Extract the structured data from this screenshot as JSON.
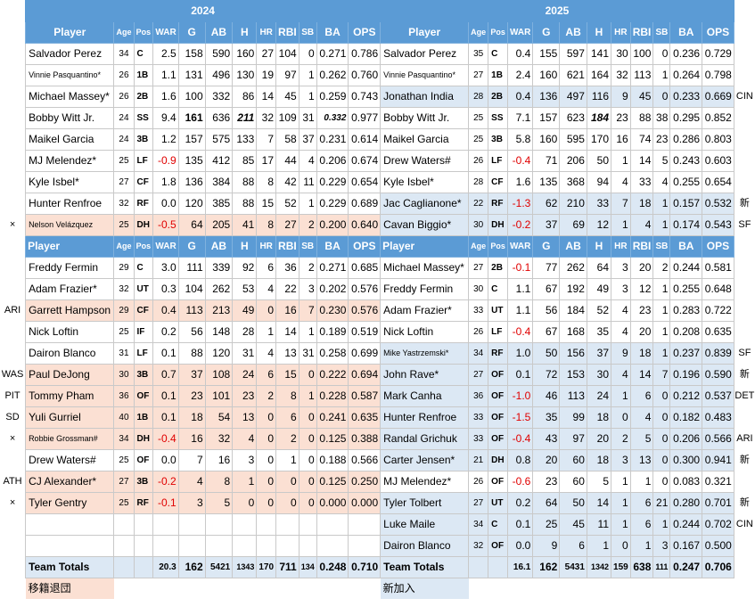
{
  "headers": {
    "year1": "2024",
    "year2": "2025",
    "player": "Player",
    "age": "Age",
    "pos": "Pos",
    "war": "WAR",
    "g": "G",
    "ab": "AB",
    "h": "H",
    "hr": "HR",
    "rbi": "RBI",
    "sb": "SB",
    "ba": "BA",
    "ops": "OPS"
  },
  "rows": [
    {
      "ln": "",
      "l": [
        "Salvador Perez",
        "34",
        "C",
        "2.5",
        "158",
        "590",
        "160",
        "27",
        "104",
        "0",
        "0.271",
        "0.786"
      ],
      "r": [
        "Salvador Perez",
        "35",
        "C",
        "0.4",
        "155",
        "597",
        "141",
        "30",
        "100",
        "0",
        "0.236",
        "0.729"
      ],
      "rn": ""
    },
    {
      "ln": "",
      "l": [
        "Vinnie Pasquantino*",
        "26",
        "1B",
        "1.1",
        "131",
        "496",
        "130",
        "19",
        "97",
        "1",
        "0.262",
        "0.760"
      ],
      "r": [
        "Vinnie Pasquantino*",
        "27",
        "1B",
        "2.4",
        "160",
        "621",
        "164",
        "32",
        "113",
        "1",
        "0.264",
        "0.798"
      ],
      "rn": ""
    },
    {
      "ln": "",
      "l": [
        "Michael Massey*",
        "26",
        "2B",
        "1.6",
        "100",
        "332",
        "86",
        "14",
        "45",
        "1",
        "0.259",
        "0.743"
      ],
      "r": [
        "Jonathan India",
        "28",
        "2B",
        "0.4",
        "136",
        "497",
        "116",
        "9",
        "45",
        "0",
        "0.233",
        "0.669"
      ],
      "rn": "CIN"
    },
    {
      "ln": "",
      "l": [
        "Bobby Witt Jr.",
        "24",
        "SS",
        "9.4",
        "161",
        "636",
        "211",
        "32",
        "109",
        "31",
        "0.332",
        "0.977"
      ],
      "r": [
        "Bobby Witt Jr.",
        "25",
        "SS",
        "7.1",
        "157",
        "623",
        "184",
        "23",
        "88",
        "38",
        "0.295",
        "0.852"
      ],
      "rn": ""
    },
    {
      "ln": "",
      "l": [
        "Maikel Garcia",
        "24",
        "3B",
        "1.2",
        "157",
        "575",
        "133",
        "7",
        "58",
        "37",
        "0.231",
        "0.614"
      ],
      "r": [
        "Maikel Garcia",
        "25",
        "3B",
        "5.8",
        "160",
        "595",
        "170",
        "16",
        "74",
        "23",
        "0.286",
        "0.803"
      ],
      "rn": ""
    },
    {
      "ln": "",
      "l": [
        "MJ Melendez*",
        "25",
        "LF",
        "-0.9",
        "135",
        "412",
        "85",
        "17",
        "44",
        "4",
        "0.206",
        "0.674"
      ],
      "r": [
        "Drew Waters#",
        "26",
        "LF",
        "-0.4",
        "71",
        "206",
        "50",
        "1",
        "14",
        "5",
        "0.243",
        "0.603"
      ],
      "rn": ""
    },
    {
      "ln": "",
      "l": [
        "Kyle Isbel*",
        "27",
        "CF",
        "1.8",
        "136",
        "384",
        "88",
        "8",
        "42",
        "11",
        "0.229",
        "0.654"
      ],
      "r": [
        "Kyle Isbel*",
        "28",
        "CF",
        "1.6",
        "135",
        "368",
        "94",
        "4",
        "33",
        "4",
        "0.255",
        "0.654"
      ],
      "rn": ""
    },
    {
      "ln": "",
      "l": [
        "Hunter Renfroe",
        "32",
        "RF",
        "0.0",
        "120",
        "385",
        "88",
        "15",
        "52",
        "1",
        "0.229",
        "0.689"
      ],
      "r": [
        "Jac Caglianone*",
        "22",
        "RF",
        "-1.3",
        "62",
        "210",
        "33",
        "7",
        "18",
        "1",
        "0.157",
        "0.532"
      ],
      "rn": "新"
    },
    {
      "ln": "×",
      "l": [
        "Nelson Velázquez",
        "25",
        "DH",
        "-0.5",
        "64",
        "205",
        "41",
        "8",
        "27",
        "2",
        "0.200",
        "0.640"
      ],
      "r": [
        "Cavan Biggio*",
        "30",
        "DH",
        "-0.2",
        "37",
        "69",
        "12",
        "1",
        "4",
        "1",
        "0.174",
        "0.543"
      ],
      "rn": "SF"
    },
    {
      "ln": "",
      "l": [
        "Freddy Fermin",
        "29",
        "C",
        "3.0",
        "111",
        "339",
        "92",
        "6",
        "36",
        "2",
        "0.271",
        "0.685"
      ],
      "r": [
        "Michael Massey*",
        "27",
        "2B",
        "-0.1",
        "77",
        "262",
        "64",
        "3",
        "20",
        "2",
        "0.244",
        "0.581"
      ],
      "rn": ""
    },
    {
      "ln": "",
      "l": [
        "Adam Frazier*",
        "32",
        "UT",
        "0.3",
        "104",
        "262",
        "53",
        "4",
        "22",
        "3",
        "0.202",
        "0.576"
      ],
      "r": [
        "Freddy Fermin",
        "30",
        "C",
        "1.1",
        "67",
        "192",
        "49",
        "3",
        "12",
        "1",
        "0.255",
        "0.648"
      ],
      "rn": ""
    },
    {
      "ln": "ARI",
      "l": [
        "Garrett Hampson",
        "29",
        "CF",
        "0.4",
        "113",
        "213",
        "49",
        "0",
        "16",
        "7",
        "0.230",
        "0.576"
      ],
      "r": [
        "Adam Frazier*",
        "33",
        "UT",
        "1.1",
        "56",
        "184",
        "52",
        "4",
        "23",
        "1",
        "0.283",
        "0.722"
      ],
      "rn": ""
    },
    {
      "ln": "",
      "l": [
        "Nick Loftin",
        "25",
        "IF",
        "0.2",
        "56",
        "148",
        "28",
        "1",
        "14",
        "1",
        "0.189",
        "0.519"
      ],
      "r": [
        "Nick Loftin",
        "26",
        "LF",
        "-0.4",
        "67",
        "168",
        "35",
        "4",
        "20",
        "1",
        "0.208",
        "0.635"
      ],
      "rn": ""
    },
    {
      "ln": "",
      "l": [
        "Dairon Blanco",
        "31",
        "LF",
        "0.1",
        "88",
        "120",
        "31",
        "4",
        "13",
        "31",
        "0.258",
        "0.699"
      ],
      "r": [
        "Mike Yastrzemski*",
        "34",
        "RF",
        "1.0",
        "50",
        "156",
        "37",
        "9",
        "18",
        "1",
        "0.237",
        "0.839"
      ],
      "rn": "SF"
    },
    {
      "ln": "WAS",
      "l": [
        "Paul DeJong",
        "30",
        "3B",
        "0.7",
        "37",
        "108",
        "24",
        "6",
        "15",
        "0",
        "0.222",
        "0.694"
      ],
      "r": [
        "John Rave*",
        "27",
        "OF",
        "0.1",
        "72",
        "153",
        "30",
        "4",
        "14",
        "7",
        "0.196",
        "0.590"
      ],
      "rn": "新"
    },
    {
      "ln": "PIT",
      "l": [
        "Tommy Pham",
        "36",
        "OF",
        "0.1",
        "23",
        "101",
        "23",
        "2",
        "8",
        "1",
        "0.228",
        "0.587"
      ],
      "r": [
        "Mark Canha",
        "36",
        "OF",
        "-1.0",
        "46",
        "113",
        "24",
        "1",
        "6",
        "0",
        "0.212",
        "0.537"
      ],
      "rn": "DET"
    },
    {
      "ln": "SD",
      "l": [
        "Yuli Gurriel",
        "40",
        "1B",
        "0.1",
        "18",
        "54",
        "13",
        "0",
        "6",
        "0",
        "0.241",
        "0.635"
      ],
      "r": [
        "Hunter Renfroe",
        "33",
        "OF",
        "-1.5",
        "35",
        "99",
        "18",
        "0",
        "4",
        "0",
        "0.182",
        "0.483"
      ],
      "rn": ""
    },
    {
      "ln": "×",
      "l": [
        "Robbie Grossman#",
        "34",
        "DH",
        "-0.4",
        "16",
        "32",
        "4",
        "0",
        "2",
        "0",
        "0.125",
        "0.388"
      ],
      "r": [
        "Randal Grichuk",
        "33",
        "OF",
        "-0.4",
        "43",
        "97",
        "20",
        "2",
        "5",
        "0",
        "0.206",
        "0.566"
      ],
      "rn": "ARI"
    },
    {
      "ln": "",
      "l": [
        "Drew Waters#",
        "25",
        "OF",
        "0.0",
        "7",
        "16",
        "3",
        "0",
        "1",
        "0",
        "0.188",
        "0.566"
      ],
      "r": [
        "Carter Jensen*",
        "21",
        "DH",
        "0.8",
        "20",
        "60",
        "18",
        "3",
        "13",
        "0",
        "0.300",
        "0.941"
      ],
      "rn": "新"
    },
    {
      "ln": "ATH",
      "l": [
        "CJ Alexander*",
        "27",
        "3B",
        "-0.2",
        "4",
        "8",
        "1",
        "0",
        "0",
        "0",
        "0.125",
        "0.250"
      ],
      "r": [
        "MJ Melendez*",
        "26",
        "OF",
        "-0.6",
        "23",
        "60",
        "5",
        "1",
        "1",
        "0",
        "0.083",
        "0.321"
      ],
      "rn": ""
    },
    {
      "ln": "×",
      "l": [
        "Tyler Gentry",
        "25",
        "RF",
        "-0.1",
        "3",
        "5",
        "0",
        "0",
        "0",
        "0",
        "0.000",
        "0.000"
      ],
      "r": [
        "Tyler Tolbert",
        "27",
        "UT",
        "0.2",
        "64",
        "50",
        "14",
        "1",
        "6",
        "21",
        "0.280",
        "0.701"
      ],
      "rn": "新"
    },
    {
      "ln": "",
      "l": [
        "",
        "",
        "",
        "",
        "",
        "",
        "",
        "",
        "",
        "",
        "",
        ""
      ],
      "r": [
        "Luke Maile",
        "34",
        "C",
        "0.1",
        "25",
        "45",
        "11",
        "1",
        "6",
        "1",
        "0.244",
        "0.702"
      ],
      "rn": "CIN"
    },
    {
      "ln": "",
      "l": [
        "",
        "",
        "",
        "",
        "",
        "",
        "",
        "",
        "",
        "",
        "",
        ""
      ],
      "r": [
        "Dairon Blanco",
        "32",
        "OF",
        "0.0",
        "9",
        "6",
        "1",
        "0",
        "1",
        "3",
        "0.167",
        "0.500"
      ],
      "rn": ""
    }
  ],
  "totals": {
    "label": "Team Totals",
    "l": [
      "20.3",
      "162",
      "5421",
      "1343",
      "170",
      "711",
      "134",
      "0.248",
      "0.710"
    ],
    "r": [
      "16.1",
      "162",
      "5431",
      "1342",
      "159",
      "638",
      "111",
      "0.247",
      "0.706"
    ]
  },
  "legend": {
    "left": "移籍退団",
    "right": "新加入"
  },
  "colors": {
    "header_blue": "#5b9bd5",
    "departed_red_bg": "#fbe0d3",
    "new_blue_bg": "#dce8f4",
    "negative_red": "#e00000"
  }
}
